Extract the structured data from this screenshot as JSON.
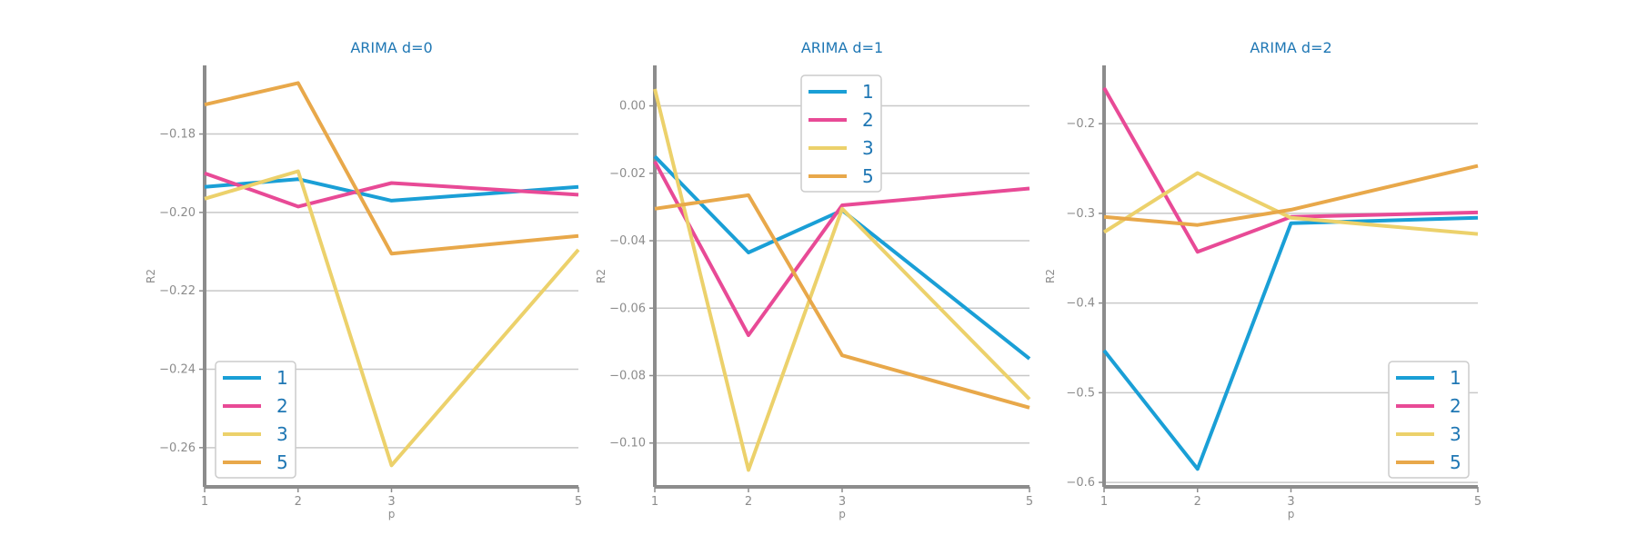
{
  "chart_data": [
    {
      "type": "line",
      "title": "ARIMA d=0",
      "xlabel": "p",
      "ylabel": "R2",
      "x": [
        1,
        2,
        3,
        5
      ],
      "xticks": [
        "1",
        "2",
        "3",
        "5"
      ],
      "xlim": [
        1,
        5
      ],
      "ylim": [
        -0.27,
        -0.1625
      ],
      "yticks": [
        -0.18,
        -0.2,
        -0.22,
        -0.24,
        -0.26
      ],
      "ytick_labels": [
        "−0.18",
        "−0.20",
        "−0.22",
        "−0.24",
        "−0.26"
      ],
      "grid": true,
      "legend_position": "lower-left",
      "series": [
        {
          "name": "1",
          "color": "#1a9fd6",
          "values": [
            -0.1935,
            -0.1915,
            -0.197,
            -0.1935
          ]
        },
        {
          "name": "2",
          "color": "#e84a96",
          "values": [
            -0.19,
            -0.1985,
            -0.1925,
            -0.1955
          ]
        },
        {
          "name": "3",
          "color": "#ecd16b",
          "values": [
            -0.1965,
            -0.1895,
            -0.2645,
            -0.2095
          ]
        },
        {
          "name": "5",
          "color": "#e8a84a",
          "values": [
            -0.1725,
            -0.167,
            -0.2105,
            -0.206
          ]
        }
      ]
    },
    {
      "type": "line",
      "title": "ARIMA d=1",
      "xlabel": "p",
      "ylabel": "R2",
      "x": [
        1,
        2,
        3,
        5
      ],
      "xticks": [
        "1",
        "2",
        "3",
        "5"
      ],
      "xlim": [
        1,
        5
      ],
      "ylim": [
        -0.113,
        0.012
      ],
      "yticks": [
        0.0,
        -0.02,
        -0.04,
        -0.06,
        -0.08,
        -0.1
      ],
      "ytick_labels": [
        "0.00",
        "−0.02",
        "−0.04",
        "−0.06",
        "−0.08",
        "−0.10"
      ],
      "grid": true,
      "legend_position": "upper-center",
      "series": [
        {
          "name": "1",
          "color": "#1a9fd6",
          "values": [
            -0.015,
            -0.0435,
            -0.031,
            -0.075
          ]
        },
        {
          "name": "2",
          "color": "#e84a96",
          "values": [
            -0.0165,
            -0.068,
            -0.0295,
            -0.0245
          ]
        },
        {
          "name": "3",
          "color": "#ecd16b",
          "values": [
            0.005,
            -0.108,
            -0.0305,
            -0.087
          ]
        },
        {
          "name": "5",
          "color": "#e8a84a",
          "values": [
            -0.0305,
            -0.0265,
            -0.074,
            -0.0895
          ]
        }
      ]
    },
    {
      "type": "line",
      "title": "ARIMA d=2",
      "xlabel": "p",
      "ylabel": "R2",
      "x": [
        1,
        2,
        3,
        5
      ],
      "xticks": [
        "1",
        "2",
        "3",
        "5"
      ],
      "xlim": [
        1,
        5
      ],
      "ylim": [
        -0.605,
        -0.135
      ],
      "yticks": [
        -0.2,
        -0.3,
        -0.4,
        -0.5,
        -0.6
      ],
      "ytick_labels": [
        "−0.2",
        "−0.3",
        "−0.4",
        "−0.5",
        "−0.6"
      ],
      "grid": true,
      "legend_position": "lower-right",
      "series": [
        {
          "name": "1",
          "color": "#1a9fd6",
          "values": [
            -0.453,
            -0.585,
            -0.311,
            -0.305
          ]
        },
        {
          "name": "2",
          "color": "#e84a96",
          "values": [
            -0.16,
            -0.343,
            -0.304,
            -0.299
          ]
        },
        {
          "name": "3",
          "color": "#ecd16b",
          "values": [
            -0.321,
            -0.255,
            -0.305,
            -0.323
          ]
        },
        {
          "name": "5",
          "color": "#e8a84a",
          "values": [
            -0.304,
            -0.313,
            -0.296,
            -0.247
          ]
        }
      ]
    }
  ]
}
